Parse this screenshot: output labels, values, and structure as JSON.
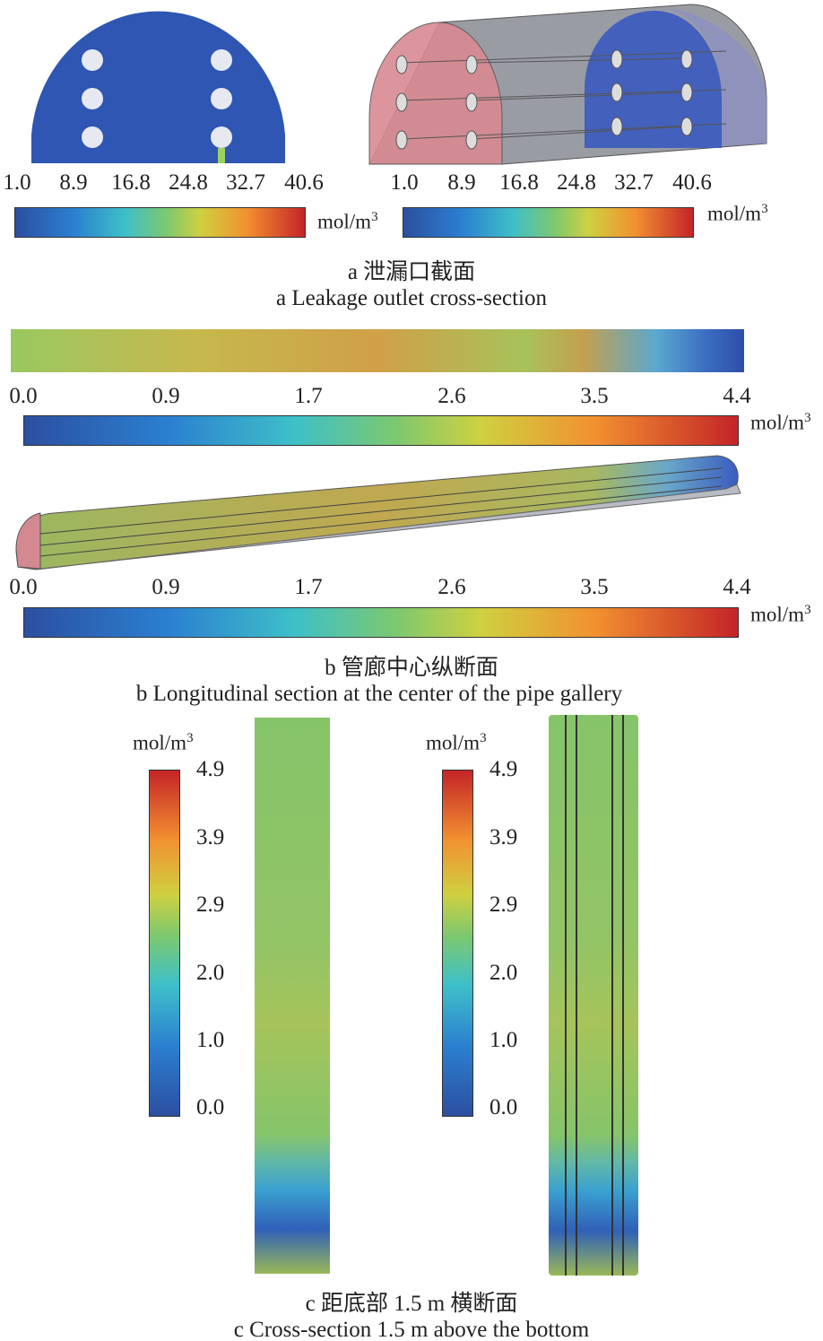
{
  "panel_a": {
    "ticks": [
      "1.0",
      "8.9",
      "16.8",
      "24.8",
      "32.7",
      "40.6"
    ],
    "unit": "mol/m",
    "unit_exp": "3",
    "caption_cn": "a  泄漏口截面",
    "caption_en": "a   Leakage outlet cross-section"
  },
  "panel_b": {
    "ticks": [
      "0.0",
      "0.9",
      "1.7",
      "2.6",
      "3.5",
      "4.4"
    ],
    "unit": "mol/m",
    "unit_exp": "3",
    "caption_cn": "b  管廊中心纵断面",
    "caption_en": "b  Longitudinal section at the center of the pipe gallery"
  },
  "panel_c": {
    "ticks": [
      "4.9",
      "3.9",
      "2.9",
      "2.0",
      "1.0",
      "0.0"
    ],
    "unit": "mol/m",
    "unit_exp": "3",
    "caption_cn": "c  距底部 1.5 m 横断面",
    "caption_en": "c  Cross-section 1.5 m above the bottom"
  },
  "colors": {
    "low": "#2d4fa0",
    "mid": "#7cc870",
    "high": "#c42428"
  }
}
